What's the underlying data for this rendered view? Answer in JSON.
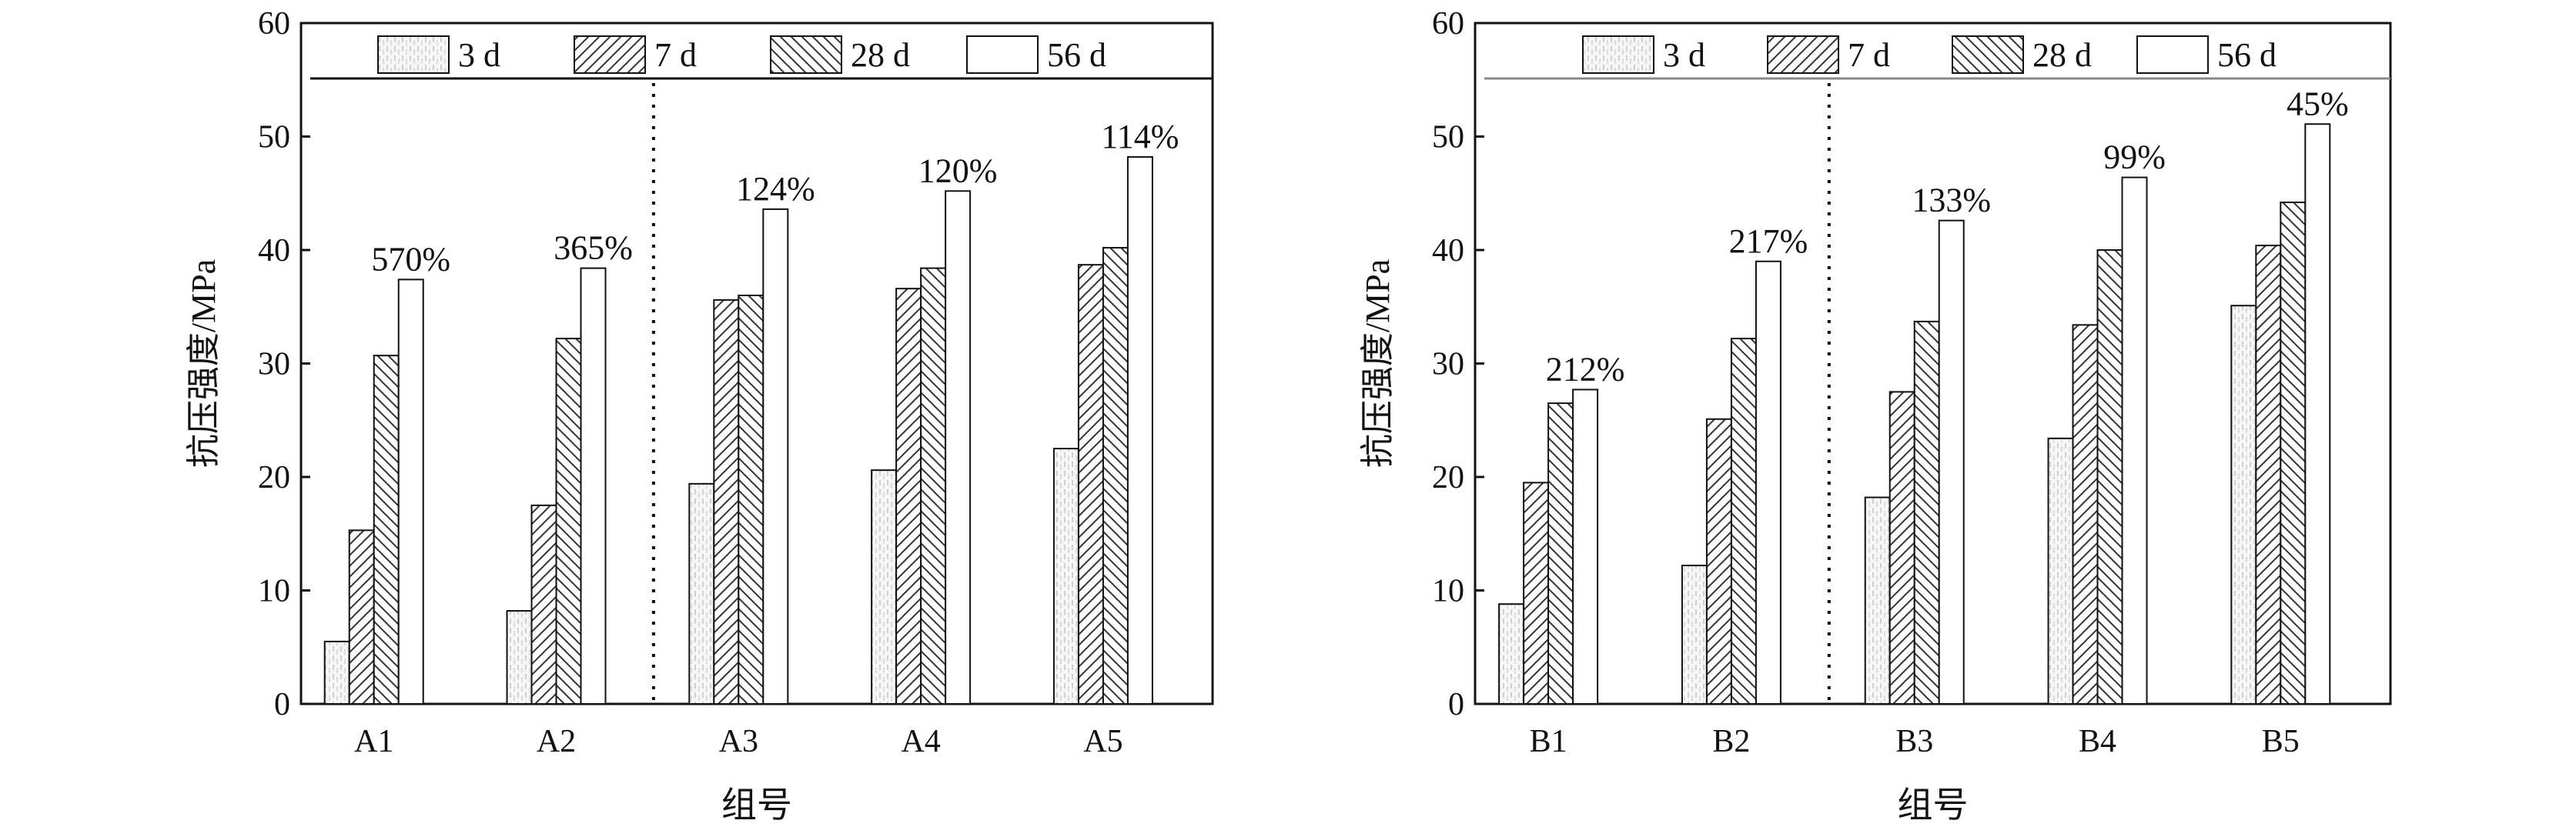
{
  "chart_data": [
    {
      "type": "bar",
      "title": "",
      "xlabel": "组号",
      "ylabel": "抗压强度/MPa",
      "ylim": [
        0,
        60
      ],
      "yticks": [
        0,
        10,
        20,
        30,
        40,
        50,
        60
      ],
      "categories": [
        "A1",
        "A2",
        "A3",
        "A4",
        "A5"
      ],
      "legend_placement": "top",
      "series": [
        {
          "name": "3 d",
          "values": [
            5.5,
            8.2,
            19.4,
            20.6,
            22.5
          ]
        },
        {
          "name": "7 d",
          "values": [
            15.3,
            17.5,
            35.6,
            36.6,
            38.7
          ]
        },
        {
          "name": "28 d",
          "values": [
            30.7,
            32.2,
            36.0,
            38.4,
            40.2
          ]
        },
        {
          "name": "56 d",
          "values": [
            37.4,
            38.4,
            43.6,
            45.2,
            48.2
          ]
        }
      ],
      "annotations": [
        "570%",
        "365%",
        "124%",
        "120%",
        "114%"
      ],
      "divider_after_category": "A2"
    },
    {
      "type": "bar",
      "title": "",
      "xlabel": "组号",
      "ylabel": "抗压强度/MPa",
      "ylim": [
        0,
        60
      ],
      "yticks": [
        0,
        10,
        20,
        30,
        40,
        50,
        60
      ],
      "categories": [
        "B1",
        "B2",
        "B3",
        "B4",
        "B5"
      ],
      "legend_placement": "top",
      "series": [
        {
          "name": "3 d",
          "values": [
            8.8,
            12.2,
            18.2,
            23.4,
            35.1
          ]
        },
        {
          "name": "7 d",
          "values": [
            19.5,
            25.1,
            27.5,
            33.4,
            40.4
          ]
        },
        {
          "name": "28 d",
          "values": [
            26.5,
            32.2,
            33.7,
            40.0,
            44.2
          ]
        },
        {
          "name": "56 d",
          "values": [
            27.7,
            39.0,
            42.6,
            46.4,
            51.1
          ]
        }
      ],
      "annotations": [
        "212%",
        "217%",
        "133%",
        "99%",
        "45%"
      ],
      "divider_after_category": "B2"
    }
  ]
}
